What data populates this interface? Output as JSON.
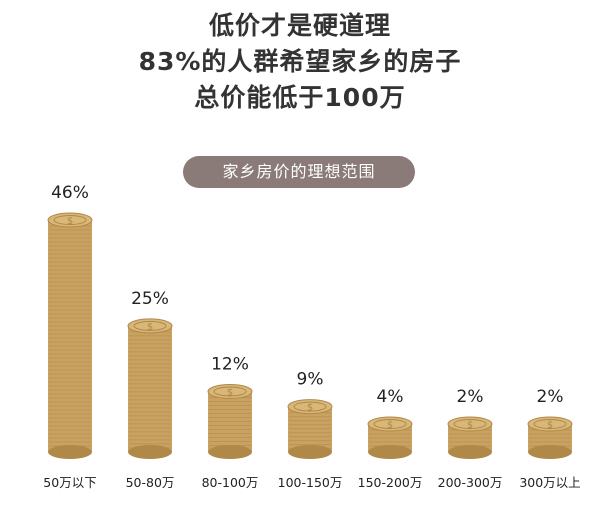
{
  "header": {
    "title_lines": [
      "低价才是硬道理",
      "83%的人群希望家乡的房子",
      "总价能低于100万"
    ],
    "subtitle": "家乡房价的理想范围"
  },
  "colors": {
    "coin_body": "#c9a262",
    "coin_top": "#d8b778",
    "coin_ridge": "#b08847",
    "pill": "#8a7a78"
  },
  "chart_data": {
    "type": "bar",
    "categories": [
      "50万以下",
      "50-80万",
      "80-100万",
      "100-150万",
      "150-200万",
      "200-300万",
      "300万以上"
    ],
    "values": [
      46,
      25,
      12,
      9,
      4,
      2,
      2
    ],
    "value_labels": [
      "46%",
      "25%",
      "12%",
      "9%",
      "4%",
      "2%",
      "2%"
    ],
    "ylim": [
      0,
      46
    ],
    "grid": false,
    "legend": "none"
  }
}
